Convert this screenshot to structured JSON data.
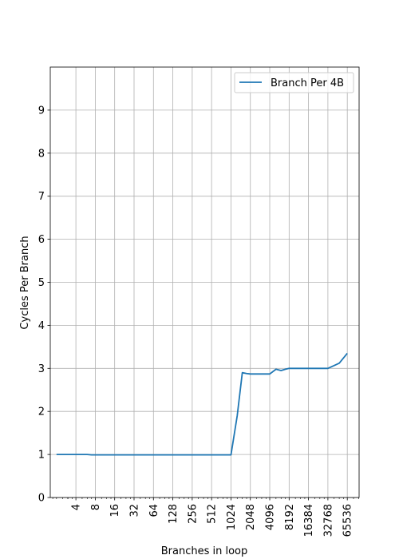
{
  "chart_data": {
    "type": "line",
    "title": "",
    "xlabel": "Branches in loop",
    "ylabel": "Cycles Per Branch",
    "x_scale": "log2",
    "xlim": [
      1.6,
      100000
    ],
    "ylim": [
      0,
      10
    ],
    "x_ticks": [
      4,
      8,
      16,
      32,
      64,
      128,
      256,
      512,
      1024,
      2048,
      4096,
      8192,
      16384,
      32768,
      65536
    ],
    "y_ticks": [
      0,
      1,
      2,
      3,
      4,
      5,
      6,
      7,
      8,
      9
    ],
    "grid": true,
    "legend_position": "top-right",
    "series": [
      {
        "name": "Branch Per 4B",
        "color": "#1f77b4",
        "x": [
          2,
          3,
          4,
          5,
          6,
          7,
          8,
          16,
          32,
          64,
          128,
          256,
          512,
          1024,
          1280,
          1536,
          1792,
          2048,
          2560,
          3072,
          4096,
          5120,
          6144,
          7168,
          8192,
          12288,
          16384,
          24576,
          32768,
          49152,
          65536
        ],
        "y": [
          1.0,
          1.0,
          1.0,
          1.0,
          1.0,
          0.99,
          0.99,
          0.99,
          0.99,
          0.99,
          0.99,
          0.99,
          0.99,
          0.99,
          1.9,
          2.9,
          2.88,
          2.87,
          2.87,
          2.87,
          2.87,
          2.98,
          2.95,
          2.98,
          3.0,
          3.0,
          3.0,
          3.0,
          3.0,
          3.12,
          3.35
        ]
      }
    ]
  }
}
